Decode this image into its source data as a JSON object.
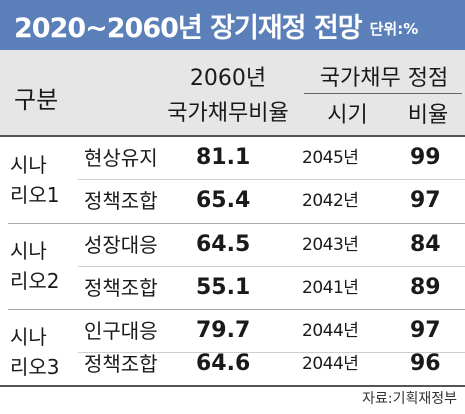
{
  "title": {
    "text": "2020~2060년 장기재정 전망",
    "unit": "단위:%"
  },
  "header": {
    "category": "구분",
    "year_2060": "2060년",
    "debt_ratio": "국가채무비율",
    "debt_peak": "국가채무 정점",
    "peak_time": "시기",
    "peak_ratio": "비율"
  },
  "scenarios": [
    {
      "label_line1": "시나",
      "label_line2": "리오1",
      "rows": [
        {
          "sub": "현상유지",
          "ratio_2060": "81.1",
          "peak_year": "2045년",
          "peak_ratio": "99"
        },
        {
          "sub": "정책조합",
          "ratio_2060": "65.4",
          "peak_year": "2042년",
          "peak_ratio": "97"
        }
      ]
    },
    {
      "label_line1": "시나",
      "label_line2": "리오2",
      "rows": [
        {
          "sub": "성장대응",
          "ratio_2060": "64.5",
          "peak_year": "2043년",
          "peak_ratio": "84"
        },
        {
          "sub": "정책조합",
          "ratio_2060": "55.1",
          "peak_year": "2041년",
          "peak_ratio": "89"
        }
      ]
    },
    {
      "label_line1": "시나",
      "label_line2": "리오3",
      "rows": [
        {
          "sub": "인구대응",
          "ratio_2060": "79.7",
          "peak_year": "2044년",
          "peak_ratio": "97"
        },
        {
          "sub": "정책조합",
          "ratio_2060": "64.6",
          "peak_year": "2044년",
          "peak_ratio": "96"
        }
      ]
    }
  ],
  "source": "자료:기획재정부"
}
